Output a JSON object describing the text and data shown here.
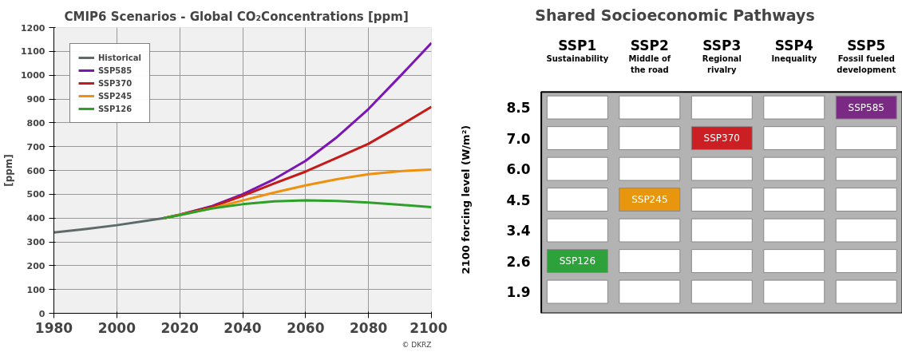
{
  "chart_data": [
    {
      "type": "line",
      "title": "CMIP6 Scenarios  -   Global CO₂Concentrations [ppm]",
      "ylabel": "[ppm]",
      "xlim": [
        1980,
        2100
      ],
      "xticks": [
        1980,
        2000,
        2020,
        2040,
        2060,
        2080,
        2100
      ],
      "ylim": [
        0,
        1200
      ],
      "yticks": [
        0,
        100,
        200,
        300,
        400,
        500,
        600,
        700,
        800,
        900,
        1000,
        1100,
        1200
      ],
      "grid": true,
      "legend": "top left",
      "annotations": [
        "© DKRZ"
      ],
      "series": [
        {
          "name": "Historical",
          "color": "#5f6a6a",
          "x": [
            1980,
            1990,
            2000,
            2010,
            2015
          ],
          "values": [
            339,
            354,
            370,
            390,
            400
          ]
        },
        {
          "name": "SSP585",
          "color": "#7b16b4",
          "x": [
            2015,
            2020,
            2030,
            2040,
            2050,
            2060,
            2070,
            2080,
            2090,
            2100
          ],
          "values": [
            400,
            414,
            449,
            500,
            563,
            640,
            740,
            858,
            995,
            1135
          ]
        },
        {
          "name": "SSP370",
          "color": "#c41a1a",
          "x": [
            2015,
            2020,
            2030,
            2040,
            2050,
            2060,
            2070,
            2080,
            2090,
            2100
          ],
          "values": [
            400,
            414,
            446,
            493,
            545,
            595,
            653,
            712,
            788,
            867
          ]
        },
        {
          "name": "SSP245",
          "color": "#f0900f",
          "x": [
            2015,
            2020,
            2030,
            2040,
            2050,
            2060,
            2070,
            2080,
            2090,
            2100
          ],
          "values": [
            400,
            413,
            440,
            474,
            507,
            537,
            563,
            584,
            597,
            603
          ]
        },
        {
          "name": "SSP126",
          "color": "#2ea02a",
          "x": [
            2015,
            2020,
            2030,
            2040,
            2050,
            2060,
            2070,
            2080,
            2090,
            2100
          ],
          "values": [
            400,
            412,
            440,
            458,
            470,
            474,
            472,
            465,
            456,
            446
          ]
        }
      ]
    },
    {
      "type": "heatmap",
      "title": "Shared Socioeconomic Pathways",
      "ylabel": "2100 forcing level (W/m²)",
      "categories": [
        "SSP1\nSustainability",
        "SSP2\nMiddle of\nthe road",
        "SSP3\nRegional\nrivalry",
        "SSP4\nInequality",
        "SSP5\nFossil fueled\ndevelopment"
      ],
      "y_categories": [
        "8.5",
        "7.0",
        "6.0",
        "4.5",
        "3.4",
        "2.6",
        "1.9"
      ],
      "cells": [
        [
          null,
          null,
          null,
          null,
          null
        ],
        [
          null,
          null,
          null,
          null,
          null
        ],
        [
          null,
          null,
          null,
          null,
          null
        ],
        [
          null,
          null,
          null,
          null,
          null
        ],
        [
          null,
          null,
          null,
          null,
          null
        ],
        [
          null,
          null,
          null,
          null,
          null
        ],
        [
          null,
          null,
          null,
          null,
          null
        ]
      ],
      "cell_labels": [
        [
          null,
          null,
          null,
          null,
          "SSP585"
        ],
        [
          null,
          null,
          "SSP370",
          null,
          null
        ],
        [
          null,
          null,
          null,
          null,
          null
        ],
        [
          null,
          "SSP245",
          null,
          null,
          null
        ],
        [
          null,
          null,
          null,
          null,
          null
        ],
        [
          "SSP126",
          null,
          null,
          null,
          null
        ],
        [
          null,
          null,
          null,
          null,
          null
        ]
      ],
      "colors": [
        [
          null,
          null,
          null,
          null,
          "#7a2a84"
        ],
        [
          null,
          null,
          "#cc1f24",
          null,
          null
        ],
        [
          null,
          null,
          null,
          null,
          null
        ],
        [
          null,
          "#e8960e",
          null,
          null,
          null
        ],
        [
          null,
          null,
          null,
          null,
          null
        ],
        [
          "#2ea23a",
          null,
          null,
          null,
          null
        ],
        [
          null,
          null,
          null,
          null,
          null
        ]
      ]
    }
  ]
}
